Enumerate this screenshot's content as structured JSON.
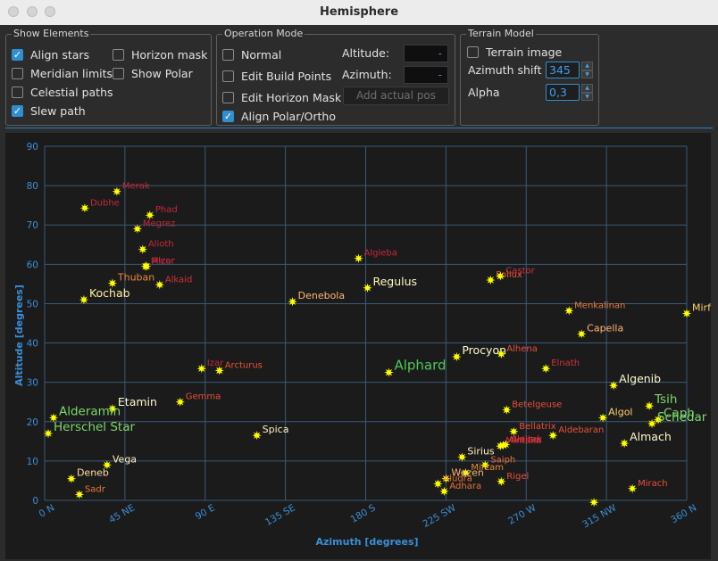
{
  "window": {
    "title": "Hemisphere"
  },
  "show_elements": {
    "title": "Show Elements",
    "items": [
      {
        "label": "Align stars",
        "checked": true
      },
      {
        "label": "Meridian limits",
        "checked": false
      },
      {
        "label": "Celestial paths",
        "checked": false
      },
      {
        "label": "Slew path",
        "checked": true
      },
      {
        "label": "Horizon mask",
        "checked": false
      },
      {
        "label": "Show Polar",
        "checked": false
      }
    ]
  },
  "operation_mode": {
    "title": "Operation Mode",
    "modes": [
      {
        "label": "Normal",
        "checked": false
      },
      {
        "label": "Edit Build Points",
        "checked": false
      },
      {
        "label": "Edit Horizon Mask",
        "checked": false
      },
      {
        "label": "Align Polar/Ortho",
        "checked": true
      }
    ],
    "altitude_label": "Altitude:",
    "altitude_value": "-",
    "azimuth_label": "Azimuth:",
    "azimuth_value": "-",
    "add_button": "Add actual pos"
  },
  "terrain_model": {
    "title": "Terrain Model",
    "terrain_image_label": "Terrain image",
    "terrain_image_checked": false,
    "azimuth_shift_label": "Azimuth shift",
    "azimuth_shift_value": "345",
    "alpha_label": "Alpha",
    "alpha_value": "0,3"
  },
  "colors": {
    "grid_line": "#3a5a7a",
    "axis_text": "#3a8fd8",
    "star_marker": "#ffff00"
  },
  "chart_data": {
    "type": "scatter",
    "xlabel": "Azimuth [degrees]",
    "ylabel": "Altitude [degrees]",
    "xlim": [
      0,
      360
    ],
    "ylim": [
      0,
      90
    ],
    "xticks": [
      {
        "v": 0,
        "label": "0 N"
      },
      {
        "v": 45,
        "label": "45 NE"
      },
      {
        "v": 90,
        "label": "90 E"
      },
      {
        "v": 135,
        "label": "135 SE"
      },
      {
        "v": 180,
        "label": "180 S"
      },
      {
        "v": 225,
        "label": "225 SW"
      },
      {
        "v": 270,
        "label": "270 W"
      },
      {
        "v": 315,
        "label": "315 NW"
      },
      {
        "v": 360,
        "label": "360 N"
      }
    ],
    "yticks": [
      0,
      10,
      20,
      30,
      40,
      50,
      60,
      70,
      80,
      90
    ],
    "grid": true,
    "stars": [
      {
        "name": "Merak",
        "az": 40.5,
        "alt": 78.5,
        "color": "#c8283c",
        "size": 10
      },
      {
        "name": "Dubhe",
        "az": 22.5,
        "alt": 74.3,
        "color": "#c8283c",
        "size": 10
      },
      {
        "name": "Phad",
        "az": 59,
        "alt": 72.5,
        "color": "#c8283c",
        "size": 10
      },
      {
        "name": "Megrez",
        "az": 52,
        "alt": 69,
        "color": "#c8283c",
        "size": 10
      },
      {
        "name": "Alioth",
        "az": 55,
        "alt": 63.8,
        "color": "#c8283c",
        "size": 10
      },
      {
        "name": "Mizar",
        "az": 56.5,
        "alt": 59.5,
        "color": "#c8283c",
        "size": 10
      },
      {
        "name": "Alcor",
        "az": 57.2,
        "alt": 59.5,
        "color": "#c8283c",
        "size": 10
      },
      {
        "name": "Thuban",
        "az": 38,
        "alt": 55.2,
        "color": "#e88a3a",
        "size": 11
      },
      {
        "name": "Alkaid",
        "az": 64.5,
        "alt": 54.8,
        "color": "#d2323c",
        "size": 10
      },
      {
        "name": "Kochab",
        "az": 22,
        "alt": 51,
        "color": "#fff0a0",
        "size": 12.5
      },
      {
        "name": "Algieba",
        "az": 176,
        "alt": 61.5,
        "color": "#c8283c",
        "size": 10
      },
      {
        "name": "Denebola",
        "az": 139,
        "alt": 50.5,
        "color": "#ffb870",
        "size": 11
      },
      {
        "name": "Regulus",
        "az": 181,
        "alt": 54,
        "color": "#fff8c0",
        "size": 12.5
      },
      {
        "name": "Pollux",
        "az": 250,
        "alt": 56,
        "color": "#e85a3a",
        "size": 10
      },
      {
        "name": "Castor",
        "az": 255.5,
        "alt": 57,
        "color": "#d2323c",
        "size": 10
      },
      {
        "name": "Menkalinan",
        "az": 294,
        "alt": 48.2,
        "color": "#e87a3a",
        "size": 10
      },
      {
        "name": "Capella",
        "az": 301,
        "alt": 42.3,
        "color": "#ffb870",
        "size": 11
      },
      {
        "name": "Procyon",
        "az": 231,
        "alt": 36.5,
        "color": "#fff8d0",
        "size": 12.5
      },
      {
        "name": "Alhena",
        "az": 256,
        "alt": 37.2,
        "color": "#e8503a",
        "size": 10
      },
      {
        "name": "Alphard",
        "az": 193,
        "alt": 32.5,
        "color": "#4ec85a",
        "size": 15
      },
      {
        "name": "Elnath",
        "az": 281,
        "alt": 33.5,
        "color": "#d2323c",
        "size": 10
      },
      {
        "name": "Algenib",
        "az": 319,
        "alt": 29.2,
        "color": "#fff8d0",
        "size": 12.5
      },
      {
        "name": "Izar",
        "az": 88,
        "alt": 33.5,
        "color": "#c8283c",
        "size": 10
      },
      {
        "name": "Arcturus",
        "az": 98,
        "alt": 33,
        "color": "#e8503a",
        "size": 10
      },
      {
        "name": "Gemma",
        "az": 76,
        "alt": 25,
        "color": "#e8503a",
        "size": 10
      },
      {
        "name": "Etamin",
        "az": 38,
        "alt": 23.3,
        "color": "#fff8d0",
        "size": 12.5
      },
      {
        "name": "Alderamin",
        "az": 5,
        "alt": 21,
        "color": "#7ed86a",
        "size": 13.5
      },
      {
        "name": "Herschel Star",
        "az": 2,
        "alt": 17,
        "color": "#7ed86a",
        "size": 13.5
      },
      {
        "name": "Betelgeuse",
        "az": 259,
        "alt": 23,
        "color": "#e8503a",
        "size": 10
      },
      {
        "name": "Algol",
        "az": 313,
        "alt": 21,
        "color": "#ffd070",
        "size": 11
      },
      {
        "name": "Tsih",
        "az": 339,
        "alt": 24,
        "color": "#7ed86a",
        "size": 13.5
      },
      {
        "name": "Caph",
        "az": 344,
        "alt": 20.5,
        "color": "#7ed86a",
        "size": 13.5
      },
      {
        "name": "Schedar",
        "az": 340.5,
        "alt": 19.5,
        "color": "#7ed86a",
        "size": 13.5
      },
      {
        "name": "Mirfak",
        "az": 360,
        "alt": 47.5,
        "color": "#ffd070",
        "size": 11
      },
      {
        "name": "Bellatrix",
        "az": 263,
        "alt": 17.5,
        "color": "#e8503a",
        "size": 10
      },
      {
        "name": "Aldebaran",
        "az": 285,
        "alt": 16.5,
        "color": "#e8503a",
        "size": 10
      },
      {
        "name": "Alnitak",
        "az": 258.5,
        "alt": 14.2,
        "color": "#d2323c",
        "size": 10
      },
      {
        "name": "Alnilam",
        "az": 257,
        "alt": 14,
        "color": "#d2323c",
        "size": 10
      },
      {
        "name": "Mintaka",
        "az": 255.5,
        "alt": 13.8,
        "color": "#d2323c",
        "size": 10
      },
      {
        "name": "Almach",
        "az": 325,
        "alt": 14.5,
        "color": "#fff8d0",
        "size": 12.5
      },
      {
        "name": "Spica",
        "az": 119,
        "alt": 16.5,
        "color": "#fff0c0",
        "size": 11
      },
      {
        "name": "Vega",
        "az": 35,
        "alt": 9,
        "color": "#fff0c0",
        "size": 11
      },
      {
        "name": "Deneb",
        "az": 15,
        "alt": 5.5,
        "color": "#ffe0a0",
        "size": 11
      },
      {
        "name": "Sadr",
        "az": 19.5,
        "alt": 1.5,
        "color": "#e87a3a",
        "size": 10
      },
      {
        "name": "Sirius",
        "az": 234,
        "alt": 11,
        "color": "#fff0c0",
        "size": 11
      },
      {
        "name": "Saiph",
        "az": 247,
        "alt": 9,
        "color": "#e8703a",
        "size": 10
      },
      {
        "name": "Mirzam",
        "az": 236,
        "alt": 7,
        "color": "#e88a3a",
        "size": 10
      },
      {
        "name": "Wezen",
        "az": 225,
        "alt": 5.5,
        "color": "#ffb870",
        "size": 11
      },
      {
        "name": "Aludra",
        "az": 220.5,
        "alt": 4.2,
        "color": "#e8703a",
        "size": 10
      },
      {
        "name": "Adhara",
        "az": 224,
        "alt": 2.3,
        "color": "#e8703a",
        "size": 10
      },
      {
        "name": "Rigel",
        "az": 256,
        "alt": 4.8,
        "color": "#e8503a",
        "size": 10
      },
      {
        "name": "Mirach",
        "az": 329.5,
        "alt": 3,
        "color": "#e8503a",
        "size": 10
      },
      {
        "name": "",
        "az": 308,
        "alt": -0.5,
        "color": "#ffffff",
        "size": 10
      }
    ]
  }
}
